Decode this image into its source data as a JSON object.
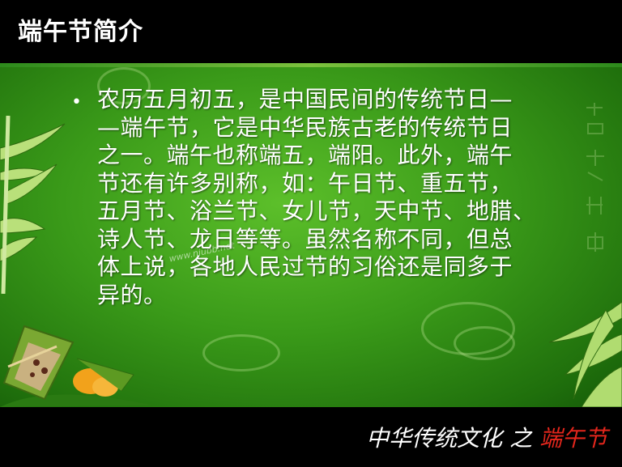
{
  "slide": {
    "title": "端午节简介",
    "body_lines": [
      "农历五月初五，是中国民间的传统节日—",
      "—端午节，它是中华民族古老的传统节日",
      "之一。端午也称端五，端阳。此外，端午",
      "节还有许多别称，如：午日节、重五节，",
      "五月节、浴兰节、女儿节，天中节、地腊、",
      "诗人节、龙日等等。虽然名称不同，但总",
      "体上说，各地人民过节的习俗还是同多于",
      "异的。"
    ],
    "watermark": "www.niubb.net",
    "footer": {
      "main": "中华传统文化 之 ",
      "accent": "端午节"
    }
  },
  "colors": {
    "background_green": "#3a9a19",
    "title_text": "#ffffff",
    "footer_accent": "#e3261c"
  },
  "icons": {
    "bullet": "bullet-dot-icon",
    "bamboo": "bamboo-leaves-icon",
    "zongzi": "zongzi-dumpling-icon"
  }
}
